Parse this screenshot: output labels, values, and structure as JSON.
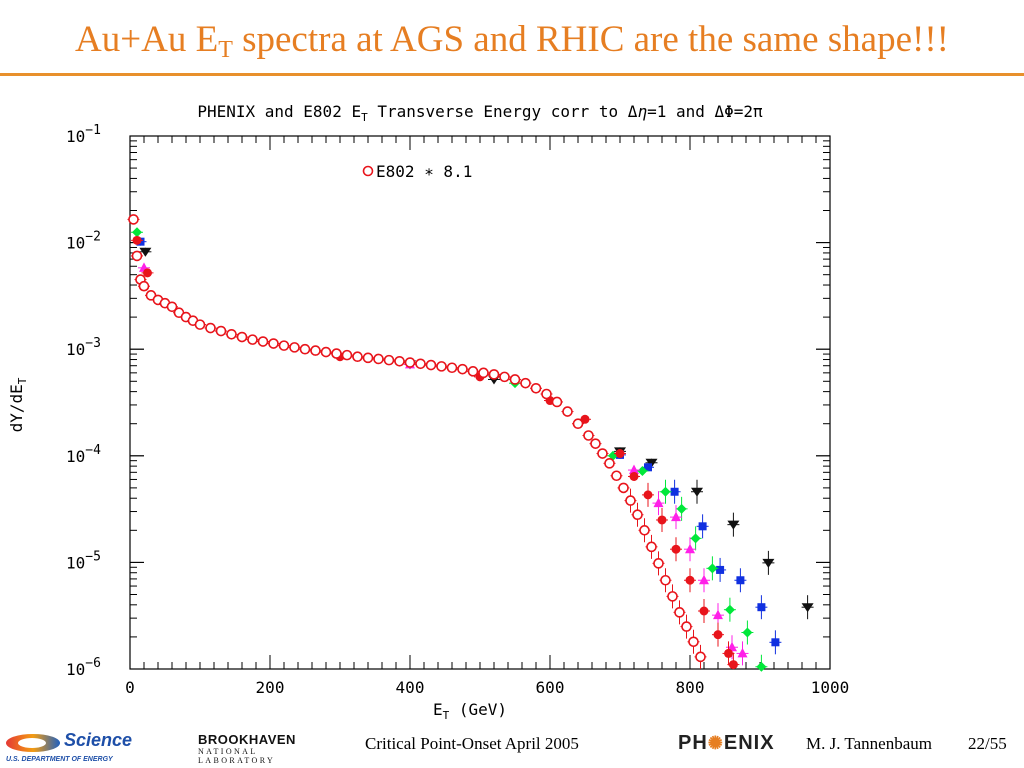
{
  "slide": {
    "title_pre": "Au+Au E",
    "title_sub": "T",
    "title_post": " spectra at AGS and RHIC are the same shape!!!",
    "accent_color": "#e67e22"
  },
  "footer": {
    "doe_science": "Science",
    "doe_sub": "U.S. DEPARTMENT OF ENERGY",
    "bnl_name": "BROOKHAVEN",
    "bnl_sub": "NATIONAL LABORATORY",
    "center_text": "Critical Point-Onset April 2005",
    "phenix_left": "PH",
    "phenix_right": "ENIX",
    "author": "M. J. Tannenbaum",
    "page": "22/55"
  },
  "chart_data": {
    "type": "scatter",
    "title": "PHENIX and E802 E_T Transverse Energy corr to Δη=1 and ΔΦ=2π",
    "title_parts": {
      "a": "PHENIX and E802 E",
      "sub": "T",
      "b": " Transverse Energy corr to Δ",
      "eta": "η",
      "c": "=1 and ΔΦ=2π"
    },
    "xlabel": "E_T (GeV)",
    "xlabel_parts": {
      "a": "E",
      "sub": "T",
      "b": " (GeV)"
    },
    "ylabel": "dY/dE_T",
    "ylabel_parts": {
      "a": "dY/dE",
      "sub": "T"
    },
    "xlim": [
      0,
      1000
    ],
    "ylim": [
      1e-06,
      0.1
    ],
    "yscale": "log",
    "x_ticks": [
      "0",
      "200",
      "400",
      "600",
      "800",
      "1000"
    ],
    "y_ticks": [
      {
        "base": "10",
        "exp": "−1"
      },
      {
        "base": "10",
        "exp": "−2"
      },
      {
        "base": "10",
        "exp": "−3"
      },
      {
        "base": "10",
        "exp": "−4"
      },
      {
        "base": "10",
        "exp": "−5"
      },
      {
        "base": "10",
        "exp": "−6"
      }
    ],
    "legend": [
      {
        "label": "E802 ∗ 8.1",
        "marker": "open-circle",
        "color": "#e8141b"
      }
    ],
    "legend_position": "top-center",
    "series": [
      {
        "marker": "triangle-down",
        "color": "#111111",
        "x": [
          22,
          400,
          520,
          700,
          745,
          810,
          862,
          912,
          968
        ],
        "y": [
          0.0082,
          0.00072,
          0.00052,
          0.00011,
          8.6e-05,
          4.6e-05,
          2.26e-05,
          9.9e-06,
          3.8e-06
        ]
      },
      {
        "marker": "square",
        "color": "#1030e0",
        "x": [
          15,
          700,
          740,
          778,
          818,
          843,
          872,
          902,
          922
        ],
        "y": [
          0.0102,
          0.000102,
          7.8e-05,
          4.6e-05,
          2.18e-05,
          8.5e-06,
          6.8e-06,
          3.8e-06,
          1.78e-06
        ]
      },
      {
        "marker": "diamond",
        "color": "#00e83a",
        "x": [
          10,
          300,
          550,
          690,
          732,
          765,
          788,
          808,
          832,
          857,
          882,
          902
        ],
        "y": [
          0.0125,
          0.00086,
          0.00048,
          0.0001,
          7.2e-05,
          4.6e-05,
          3.18e-05,
          1.68e-05,
          8.8e-06,
          3.6e-06,
          2.2e-06,
          1.05e-06
        ]
      },
      {
        "marker": "triangle-up",
        "color": "#ff20e8",
        "x": [
          20,
          400,
          720,
          755,
          780,
          800,
          820,
          840,
          860,
          875
        ],
        "y": [
          0.0058,
          0.00072,
          7.35e-05,
          3.6e-05,
          2.66e-05,
          1.33e-05,
          6.8e-06,
          3.2e-06,
          1.6e-06,
          1.4e-06
        ]
      },
      {
        "marker": "filled-circle",
        "color": "#e8141b",
        "x": [
          10,
          25,
          100,
          300,
          500,
          600,
          650,
          700,
          720,
          740,
          760,
          780,
          800,
          820,
          840,
          855,
          862
        ],
        "y": [
          0.0105,
          0.0052,
          0.0017,
          0.00085,
          0.00055,
          0.00033,
          0.00022,
          0.000105,
          6.4e-05,
          4.3e-05,
          2.5e-05,
          1.33e-05,
          6.8e-06,
          3.5e-06,
          2.1e-06,
          1.4e-06,
          1.1e-06
        ]
      },
      {
        "marker": "open-circle",
        "color": "#e8141b",
        "x": [
          5,
          10,
          15,
          20,
          30,
          40,
          50,
          60,
          70,
          80,
          90,
          100,
          115,
          130,
          145,
          160,
          175,
          190,
          205,
          220,
          235,
          250,
          265,
          280,
          295,
          310,
          325,
          340,
          355,
          370,
          385,
          400,
          415,
          430,
          445,
          460,
          475,
          490,
          505,
          520,
          535,
          550,
          565,
          580,
          595,
          610,
          625,
          640,
          655,
          665,
          675,
          685,
          695,
          705,
          715,
          725,
          735,
          745,
          755,
          765,
          775,
          785,
          795,
          805,
          815
        ],
        "y": [
          0.0165,
          0.0075,
          0.0045,
          0.0039,
          0.0032,
          0.0029,
          0.0027,
          0.0025,
          0.0022,
          0.002,
          0.00185,
          0.0017,
          0.00158,
          0.00148,
          0.00138,
          0.0013,
          0.00123,
          0.00118,
          0.00113,
          0.00108,
          0.00104,
          0.001,
          0.00097,
          0.00094,
          0.00091,
          0.00088,
          0.00085,
          0.00083,
          0.00081,
          0.00079,
          0.00077,
          0.00075,
          0.00073,
          0.00071,
          0.00069,
          0.00067,
          0.00065,
          0.00062,
          0.0006,
          0.00058,
          0.00055,
          0.00052,
          0.00048,
          0.00043,
          0.00038,
          0.00032,
          0.00026,
          0.0002,
          0.000155,
          0.00013,
          0.000105,
          8.5e-05,
          6.5e-05,
          5e-05,
          3.8e-05,
          2.8e-05,
          2e-05,
          1.4e-05,
          9.8e-06,
          6.8e-06,
          4.8e-06,
          3.4e-06,
          2.5e-06,
          1.8e-06,
          1.3e-06
        ]
      }
    ]
  }
}
